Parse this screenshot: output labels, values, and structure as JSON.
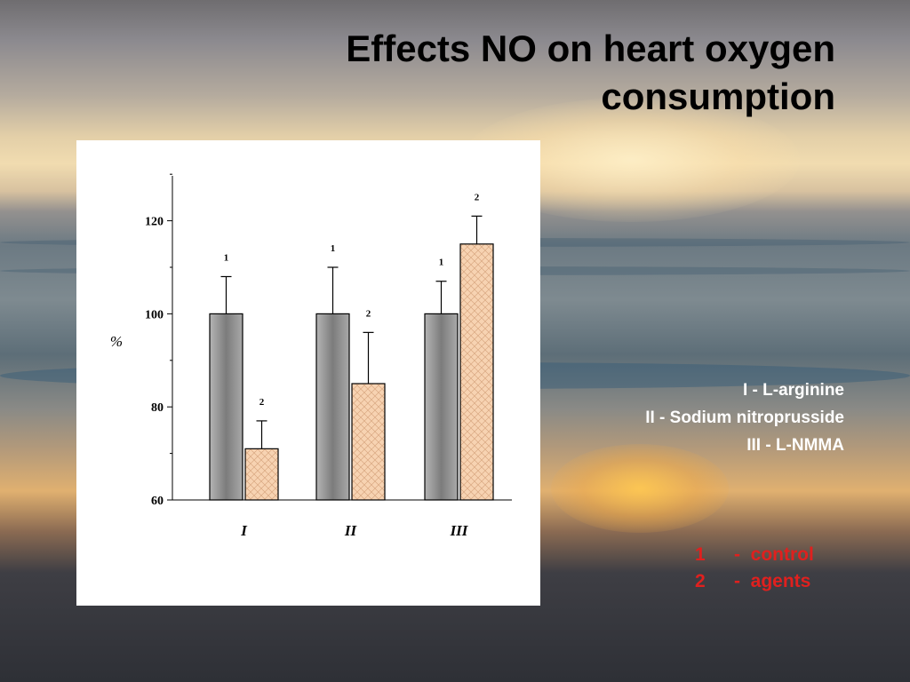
{
  "slide": {
    "title_line1": "Effects NO on heart oxygen",
    "title_line2": "consumption"
  },
  "legend_groups": [
    "I   -  L-arginine",
    "II  -  Sodium nitroprusside",
    "III -  L-NMMA"
  ],
  "legend_series": [
    {
      "num": "1",
      "sep": "-",
      "label": "control"
    },
    {
      "num": "2",
      "sep": "-",
      "label": "agents"
    }
  ],
  "colors": {
    "series_1": "#8e8e8e",
    "series_2": "#f7d3b2",
    "legend_groups_text": "#ffffff",
    "legend_series_text": "#e0201e"
  },
  "chart_data": {
    "type": "bar",
    "title": "",
    "xlabel": "",
    "ylabel": "%",
    "ylim": [
      60,
      130
    ],
    "yticks": [
      60,
      80,
      100,
      120
    ],
    "grid": false,
    "categories": [
      "I",
      "II",
      "III"
    ],
    "series": [
      {
        "name": "1",
        "values": [
          100,
          100,
          100
        ],
        "errors": [
          8,
          10,
          7
        ],
        "labels": [
          "1",
          "1",
          "1"
        ]
      },
      {
        "name": "2",
        "values": [
          71,
          85,
          115
        ],
        "errors": [
          6,
          11,
          6
        ],
        "labels": [
          "2",
          "2",
          "2"
        ]
      }
    ]
  }
}
